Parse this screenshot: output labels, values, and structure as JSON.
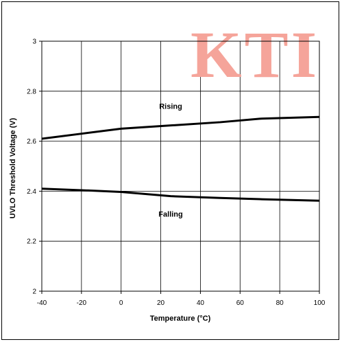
{
  "watermark": "KTI",
  "chart_data": {
    "type": "line",
    "title": "",
    "xlabel": "Temperature (°C)",
    "ylabel": "UVLO Threshold Voltage (V)",
    "xlim": [
      -40,
      100
    ],
    "ylim": [
      2,
      3
    ],
    "xticks": [
      -40,
      -20,
      0,
      20,
      40,
      60,
      80,
      100
    ],
    "yticks": [
      2,
      2.2,
      2.4,
      2.6,
      2.8,
      3
    ],
    "ytick_labels": [
      "2",
      "2.2",
      "2.4",
      "2.6",
      "2.8",
      "3"
    ],
    "grid": true,
    "series": [
      {
        "name": "Rising",
        "x": [
          -40,
          -20,
          0,
          25,
          50,
          70,
          100
        ],
        "y": [
          2.61,
          2.63,
          2.65,
          2.663,
          2.676,
          2.69,
          2.697
        ]
      },
      {
        "name": "Falling",
        "x": [
          -40,
          -20,
          0,
          25,
          50,
          70,
          100
        ],
        "y": [
          2.41,
          2.404,
          2.397,
          2.38,
          2.373,
          2.368,
          2.362
        ]
      }
    ],
    "colors": {
      "line": "#000000",
      "grid": "#000000",
      "watermark": "#f5a49a"
    }
  }
}
